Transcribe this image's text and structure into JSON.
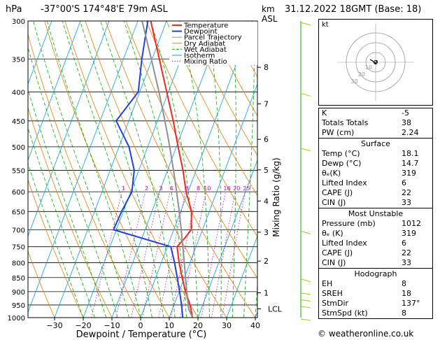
{
  "header": {
    "hpa_unit": "hPa",
    "location": "-37°00'S  174°48'E  79m  ASL",
    "km_unit": "km",
    "asl_unit": "ASL",
    "datetime": "31.12.2022  18GMT  (Base: 18)"
  },
  "legend": {
    "items": [
      {
        "label": "Temperature",
        "color": "#ff2020"
      },
      {
        "label": "Dewpoint",
        "color": "#2040e0"
      },
      {
        "label": "Parcel Trajectory",
        "color": "#909090"
      },
      {
        "label": "Dry Adiabat",
        "color": "#e08000"
      },
      {
        "label": "Wet Adiabat",
        "color": "#00b000"
      },
      {
        "label": "Isotherm",
        "color": "#00a0e0"
      },
      {
        "label": "Mixing Ratio",
        "color": "#d000b0"
      }
    ]
  },
  "chart_data": {
    "type": "line",
    "xlabel": "Dewpoint / Temperature (°C)",
    "ylabel_right": "Mixing Ratio (g/kg)",
    "x_ticks": [
      -30,
      -20,
      -10,
      0,
      10,
      20,
      30,
      40
    ],
    "x_tick_labels": [
      "−30",
      "−20",
      "−10",
      "0",
      "10",
      "20",
      "30",
      "40"
    ],
    "pressure_levels": [
      300,
      350,
      400,
      450,
      500,
      550,
      600,
      650,
      700,
      750,
      800,
      850,
      900,
      950,
      1000
    ],
    "pressure_labels": [
      "300",
      "350",
      "400",
      "450",
      "500",
      "550",
      "600",
      "650",
      "700",
      "750",
      "800",
      "850",
      "900",
      "950",
      "1000"
    ],
    "km_ticks": [
      {
        "km": 1,
        "p": 904
      },
      {
        "km": 2,
        "p": 795
      },
      {
        "km": 3,
        "p": 707
      },
      {
        "km": 4,
        "p": 623
      },
      {
        "km": 5,
        "p": 549
      },
      {
        "km": 6,
        "p": 485
      },
      {
        "km": 7,
        "p": 420
      },
      {
        "km": 8,
        "p": 362
      }
    ],
    "km_labels": [
      "1",
      "2",
      "3",
      "4",
      "5",
      "6",
      "7",
      "8"
    ],
    "lcl": {
      "label": "LCL",
      "p": 965
    },
    "mixing_ratio_values": [
      1,
      2,
      3,
      4,
      6,
      8,
      10,
      16,
      20,
      25
    ],
    "mixing_ratio_labels": [
      "1",
      "2",
      "3",
      "4",
      "6",
      "8",
      "10",
      "16",
      "20",
      "25"
    ],
    "series": [
      {
        "name": "Temperature",
        "color": "#ff2020",
        "points": [
          [
            1000,
            18.1
          ],
          [
            950,
            15.6
          ],
          [
            900,
            12.3
          ],
          [
            850,
            9.2
          ],
          [
            800,
            6.2
          ],
          [
            750,
            3.4
          ],
          [
            725,
            4.9
          ],
          [
            700,
            6.1
          ],
          [
            650,
            3.8
          ],
          [
            600,
            -0.7
          ],
          [
            550,
            -4.6
          ],
          [
            500,
            -9.4
          ],
          [
            450,
            -14.5
          ],
          [
            400,
            -20.6
          ],
          [
            350,
            -27.5
          ],
          [
            300,
            -35.5
          ]
        ]
      },
      {
        "name": "Dewpoint",
        "color": "#2040e0",
        "points": [
          [
            1000,
            14.7
          ],
          [
            950,
            12.6
          ],
          [
            900,
            10.2
          ],
          [
            850,
            7.5
          ],
          [
            800,
            4.6
          ],
          [
            750,
            1.2
          ],
          [
            700,
            -21.0
          ],
          [
            650,
            -20.6
          ],
          [
            600,
            -19.6
          ],
          [
            550,
            -21.6
          ],
          [
            500,
            -26.5
          ],
          [
            450,
            -34.4
          ],
          [
            400,
            -30.5
          ],
          [
            350,
            -33.6
          ],
          [
            300,
            -36.5
          ]
        ]
      },
      {
        "name": "Parcel Trajectory",
        "color": "#909090",
        "points": [
          [
            1000,
            18.1
          ],
          [
            965,
            15.6
          ],
          [
            900,
            12.7
          ],
          [
            850,
            10.4
          ],
          [
            800,
            8.0
          ],
          [
            750,
            5.4
          ],
          [
            700,
            2.6
          ],
          [
            650,
            -0.5
          ],
          [
            600,
            -4.0
          ],
          [
            550,
            -7.9
          ],
          [
            500,
            -12.3
          ],
          [
            450,
            -17.4
          ],
          [
            400,
            -23.3
          ],
          [
            350,
            -30.3
          ],
          [
            300,
            -38.5
          ]
        ]
      }
    ]
  },
  "hodograph": {
    "unit_label": "kt",
    "ring_labels": [
      "10",
      "20",
      "30"
    ]
  },
  "indices": {
    "top": [
      {
        "key": "K",
        "value": "-5"
      },
      {
        "key": "Totals Totals",
        "value": "38"
      },
      {
        "key": "PW (cm)",
        "value": "2.24"
      }
    ],
    "surface": {
      "title": "Surface",
      "rows": [
        {
          "key": "Temp (°C)",
          "value": "18.1"
        },
        {
          "key": "Dewp (°C)",
          "value": "14.7"
        },
        {
          "key": "θₑ(K)",
          "value": "319"
        },
        {
          "key": "Lifted Index",
          "value": "6"
        },
        {
          "key": "CAPE (J)",
          "value": "22"
        },
        {
          "key": "CIN (J)",
          "value": "33"
        }
      ]
    },
    "most_unstable": {
      "title": "Most Unstable",
      "rows": [
        {
          "key": "Pressure (mb)",
          "value": "1012"
        },
        {
          "key": "θₑ (K)",
          "value": "319"
        },
        {
          "key": "Lifted Index",
          "value": "6"
        },
        {
          "key": "CAPE (J)",
          "value": "22"
        },
        {
          "key": "CIN (J)",
          "value": "33"
        }
      ]
    },
    "hodograph": {
      "title": "Hodograph",
      "rows": [
        {
          "key": "EH",
          "value": "8"
        },
        {
          "key": "SREH",
          "value": "18"
        },
        {
          "key": "StmDir",
          "value": "137°"
        },
        {
          "key": "StmSpd (kt)",
          "value": "8"
        }
      ]
    }
  },
  "credit": "© weatheronline.co.uk"
}
